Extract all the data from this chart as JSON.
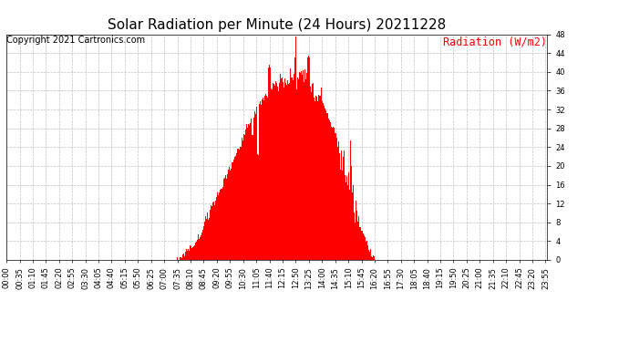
{
  "title": "Solar Radiation per Minute (24 Hours) 20211228",
  "copyright_text": "Copyright 2021 Cartronics.com",
  "legend_label": "Radiation (W/m2)",
  "background_color": "#ffffff",
  "bar_color": "#ff0000",
  "grid_color": "#c0c0c0",
  "ylim": [
    0.0,
    48.0
  ],
  "yticks": [
    0.0,
    4.0,
    8.0,
    12.0,
    16.0,
    20.0,
    24.0,
    28.0,
    32.0,
    36.0,
    40.0,
    44.0,
    48.0
  ],
  "title_fontsize": 11,
  "copyright_fontsize": 7,
  "legend_fontsize": 8.5,
  "tick_fontsize": 6
}
